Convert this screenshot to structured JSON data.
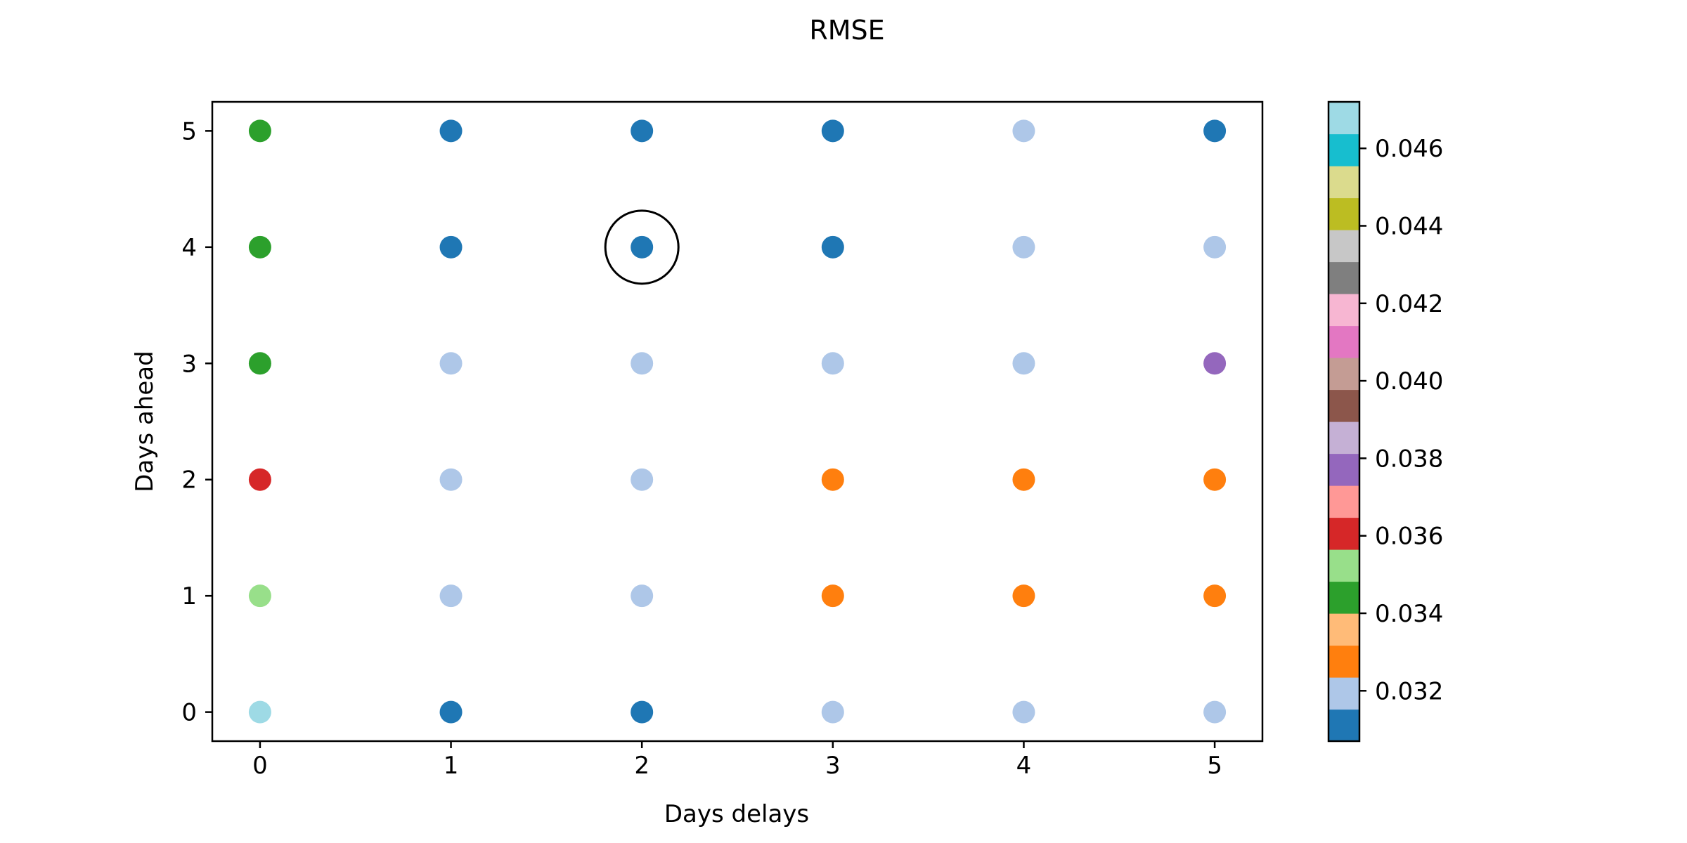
{
  "chart_data": {
    "type": "scatter",
    "title": "RMSE",
    "xlabel": "Days delays",
    "ylabel": "Days ahead",
    "x_ticks": [
      0,
      1,
      2,
      3,
      4,
      5
    ],
    "y_ticks": [
      0,
      1,
      2,
      3,
      4,
      5
    ],
    "xlim": [
      -0.25,
      5.25
    ],
    "ylim": [
      -0.25,
      5.25
    ],
    "grid": false,
    "points": [
      {
        "x": 0,
        "y": 5,
        "value": 0.0343
      },
      {
        "x": 1,
        "y": 5,
        "value": 0.031
      },
      {
        "x": 2,
        "y": 5,
        "value": 0.031
      },
      {
        "x": 3,
        "y": 5,
        "value": 0.031
      },
      {
        "x": 4,
        "y": 5,
        "value": 0.0318
      },
      {
        "x": 5,
        "y": 5,
        "value": 0.031
      },
      {
        "x": 0,
        "y": 4,
        "value": 0.0343
      },
      {
        "x": 1,
        "y": 4,
        "value": 0.031
      },
      {
        "x": 2,
        "y": 4,
        "value": 0.0309
      },
      {
        "x": 3,
        "y": 4,
        "value": 0.031
      },
      {
        "x": 4,
        "y": 4,
        "value": 0.0318
      },
      {
        "x": 5,
        "y": 4,
        "value": 0.0318
      },
      {
        "x": 0,
        "y": 3,
        "value": 0.0343
      },
      {
        "x": 1,
        "y": 3,
        "value": 0.0318
      },
      {
        "x": 2,
        "y": 3,
        "value": 0.0318
      },
      {
        "x": 3,
        "y": 3,
        "value": 0.0318
      },
      {
        "x": 4,
        "y": 3,
        "value": 0.0318
      },
      {
        "x": 5,
        "y": 3,
        "value": 0.0378
      },
      {
        "x": 0,
        "y": 2,
        "value": 0.036
      },
      {
        "x": 1,
        "y": 2,
        "value": 0.0318
      },
      {
        "x": 2,
        "y": 2,
        "value": 0.0318
      },
      {
        "x": 3,
        "y": 2,
        "value": 0.0327
      },
      {
        "x": 4,
        "y": 2,
        "value": 0.0327
      },
      {
        "x": 5,
        "y": 2,
        "value": 0.0327
      },
      {
        "x": 0,
        "y": 1,
        "value": 0.0352
      },
      {
        "x": 1,
        "y": 1,
        "value": 0.0318
      },
      {
        "x": 2,
        "y": 1,
        "value": 0.0318
      },
      {
        "x": 3,
        "y": 1,
        "value": 0.0327
      },
      {
        "x": 4,
        "y": 1,
        "value": 0.0327
      },
      {
        "x": 5,
        "y": 1,
        "value": 0.0327
      },
      {
        "x": 0,
        "y": 0,
        "value": 0.047
      },
      {
        "x": 1,
        "y": 0,
        "value": 0.031
      },
      {
        "x": 2,
        "y": 0,
        "value": 0.031
      },
      {
        "x": 3,
        "y": 0,
        "value": 0.0318
      },
      {
        "x": 4,
        "y": 0,
        "value": 0.0318
      },
      {
        "x": 5,
        "y": 0,
        "value": 0.0318
      }
    ],
    "highlight": {
      "x": 2,
      "y": 4
    },
    "colorbar": {
      "colormap": "tab20",
      "range": [
        0.0307,
        0.0472
      ],
      "ticks": [
        0.032,
        0.034,
        0.036,
        0.038,
        0.04,
        0.042,
        0.044,
        0.046
      ],
      "tick_labels": [
        "0.032",
        "0.034",
        "0.036",
        "0.038",
        "0.040",
        "0.042",
        "0.044",
        "0.046"
      ],
      "colors": [
        "#1f77b4",
        "#aec7e8",
        "#ff7f0e",
        "#ffbb78",
        "#2ca02c",
        "#98df8a",
        "#d62728",
        "#ff9896",
        "#9467bd",
        "#c5b0d5",
        "#8c564b",
        "#c49c94",
        "#e377c2",
        "#f7b6d2",
        "#7f7f7f",
        "#c7c7c7",
        "#bcbd22",
        "#dbdb8d",
        "#17becf",
        "#9edae5"
      ]
    }
  }
}
